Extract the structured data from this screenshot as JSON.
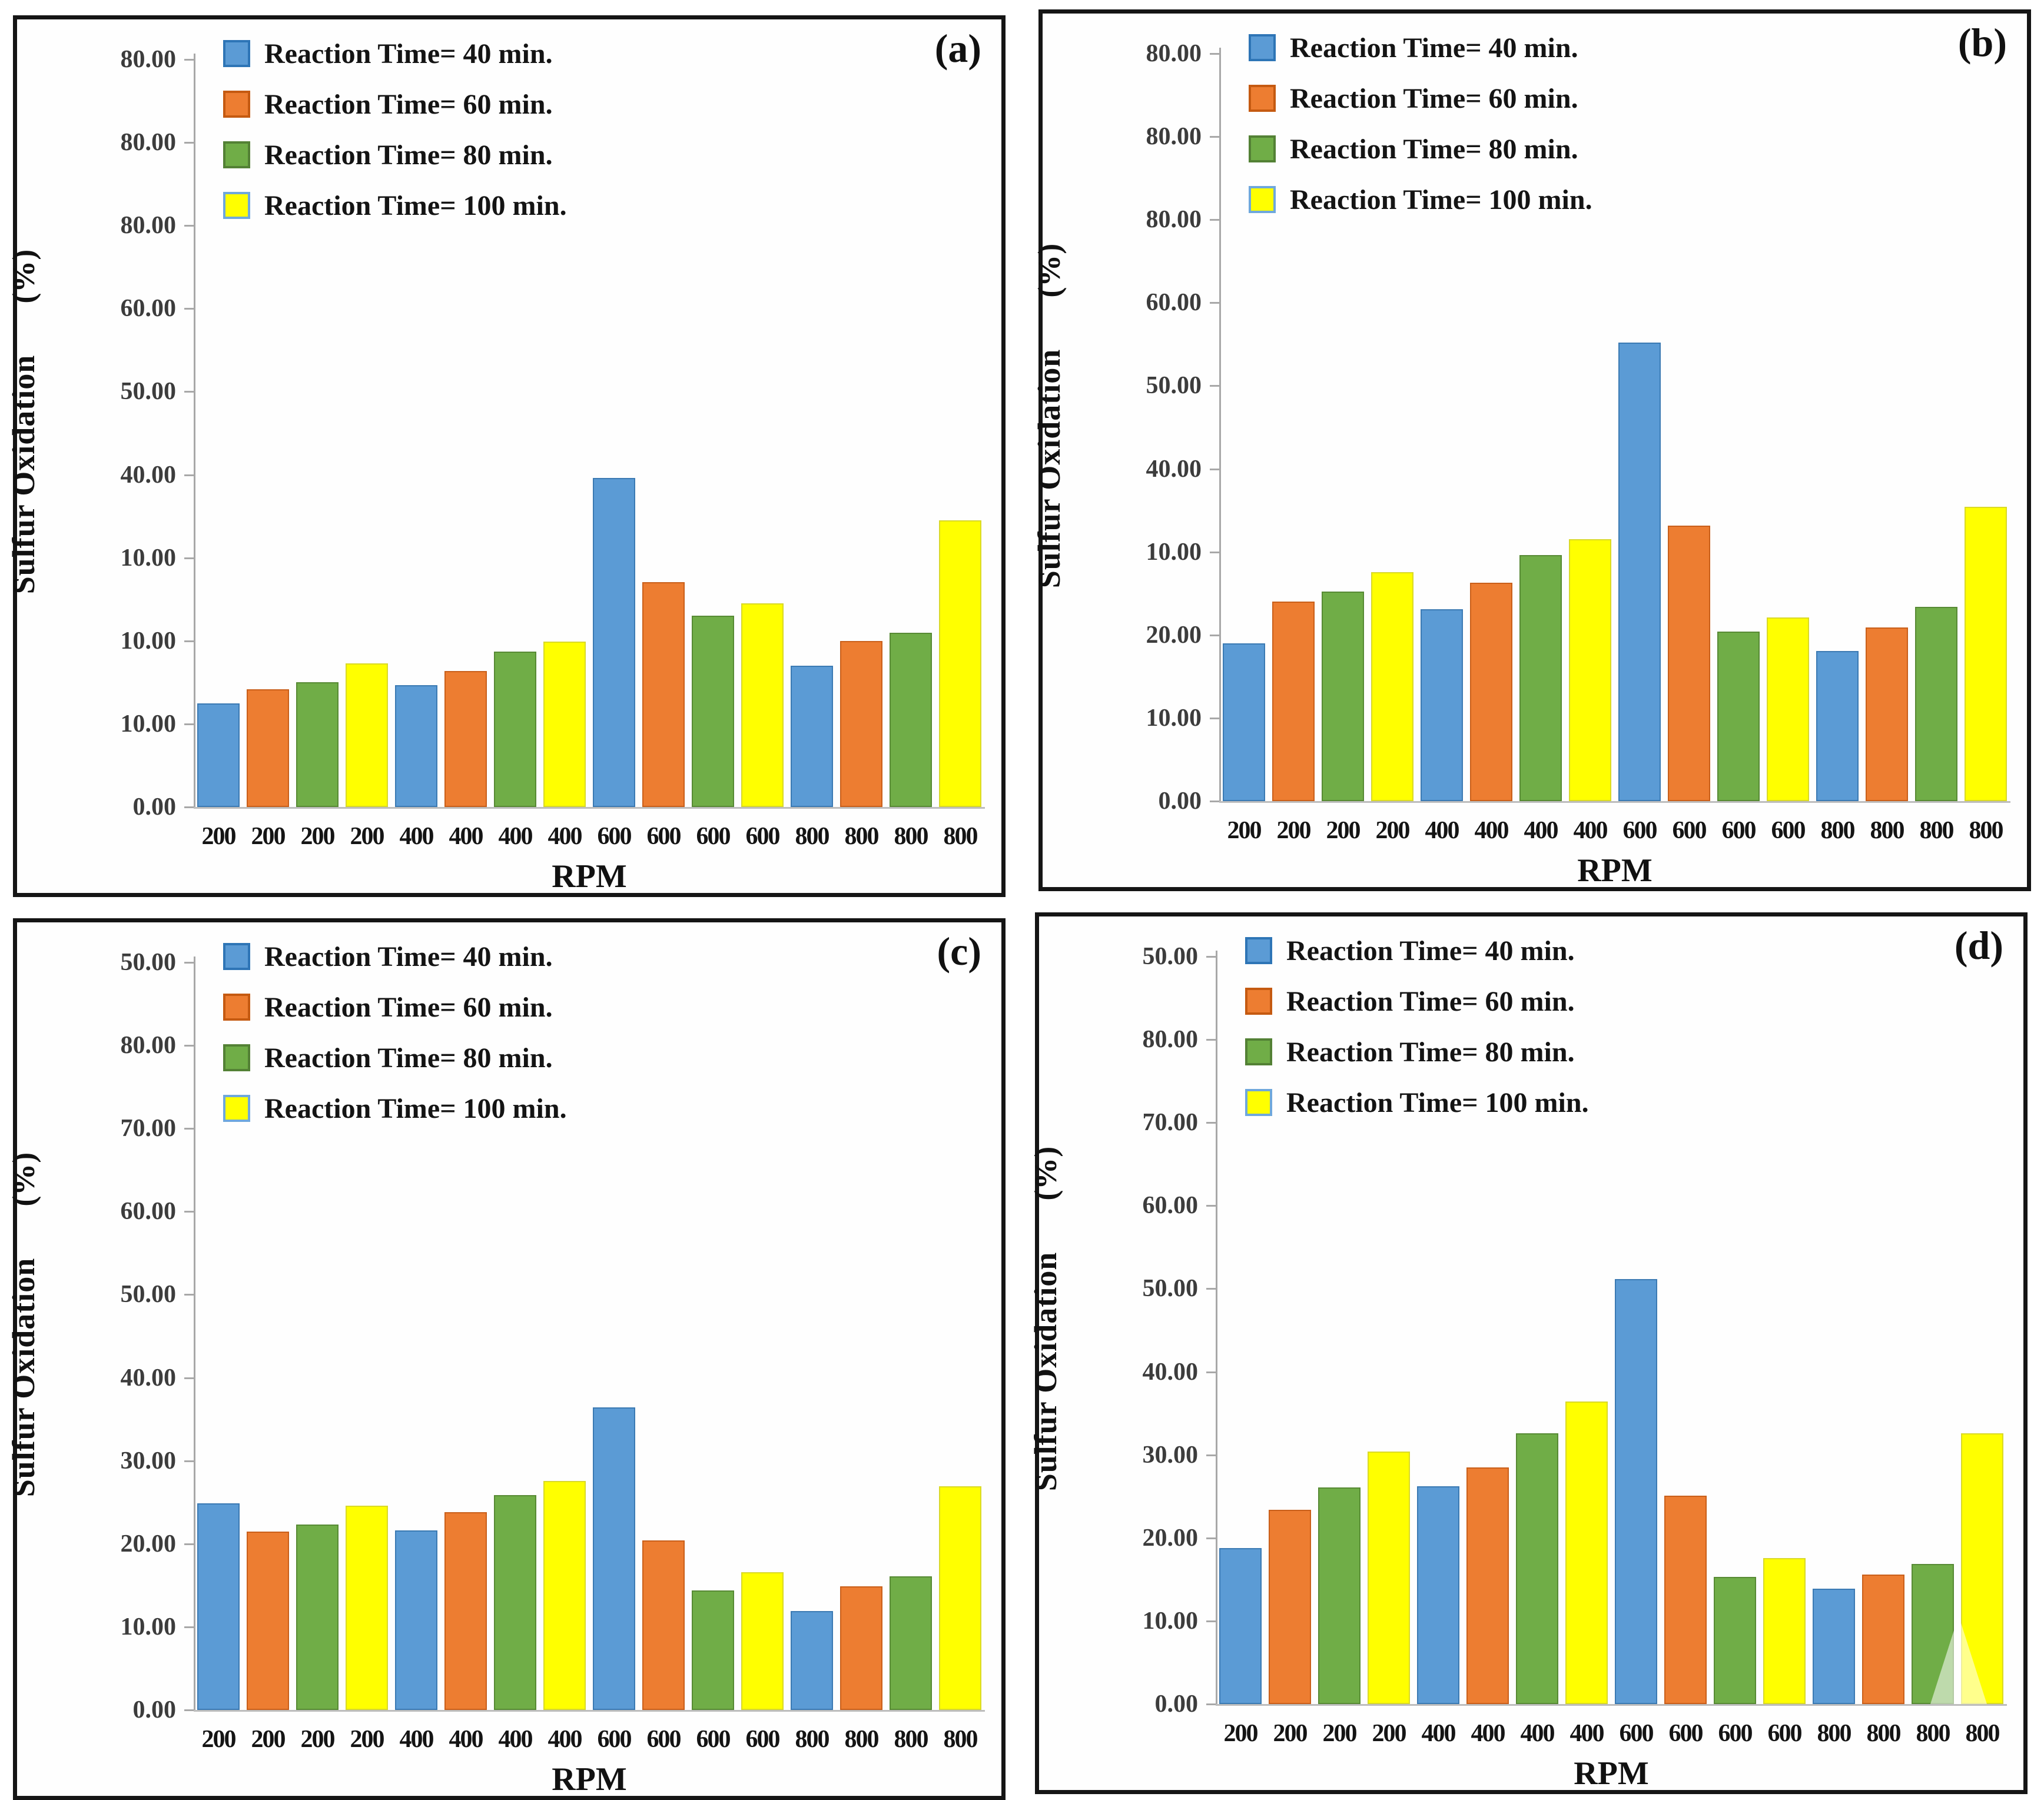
{
  "figure": {
    "background": "#ffffff",
    "panel_border_color": "#151515",
    "axis_color": "#a8a8a8",
    "series_colors": {
      "blue": "#5B9BD5",
      "orange": "#ED7D31",
      "green": "#70AD47",
      "yellow": "#FFFF00"
    }
  },
  "chart_data": [
    {
      "type": "bar",
      "panel_id": "a",
      "panel_label": "(a)",
      "ylabel": "Sulfur Oxidation",
      "ylabel_unit": "(%)",
      "xlabel": "RPM",
      "ylim": [
        0,
        90
      ],
      "grid": false,
      "legend_position": "top-left-inside",
      "y_tick_labels_top_to_bottom": [
        "80.00",
        "80.00",
        "80.00",
        "60.00",
        "50.00",
        "40.00",
        "10.00",
        "10.00",
        "10.00",
        "0.00"
      ],
      "categories": [
        "200",
        "400",
        "600",
        "800"
      ],
      "x_tick_labels": [
        "200",
        "200",
        "200",
        "200",
        "400",
        "400",
        "400",
        "400",
        "600",
        "600",
        "600",
        "600",
        "800",
        "800",
        "800",
        "800"
      ],
      "legend": [
        {
          "label": "Reaction Time= 40 min.",
          "color": "#5B9BD5",
          "border": "#2E75B6"
        },
        {
          "label": "Reaction Time= 60 min.",
          "color": "#ED7D31",
          "border": "#C55A11"
        },
        {
          "label": "Reaction Time= 80 min.",
          "color": "#70AD47",
          "border": "#538135"
        },
        {
          "label": "Reaction Time= 100 min.",
          "color": "#FFFF00",
          "border": "#6FA8DC"
        }
      ],
      "series": [
        {
          "name": "Reaction Time= 40 min.",
          "color": "#5B9BD5",
          "border": "#3b7ab3",
          "values": [
            12.5,
            14.7,
            39.6,
            17.0
          ]
        },
        {
          "name": "Reaction Time= 60 min.",
          "color": "#ED7D31",
          "border": "#c95f1a",
          "values": [
            14.2,
            16.4,
            27.1,
            20.0
          ]
        },
        {
          "name": "Reaction Time= 80 min.",
          "color": "#70AD47",
          "border": "#578a34",
          "values": [
            15.0,
            18.7,
            23.0,
            21.0
          ]
        },
        {
          "name": "Reaction Time= 100 min.",
          "color": "#FFFF00",
          "border": "#d9d927",
          "values": [
            17.3,
            19.9,
            24.5,
            34.5
          ]
        }
      ]
    },
    {
      "type": "bar",
      "panel_id": "b",
      "panel_label": "(b)",
      "ylabel": "Sulfur Oxidation",
      "ylabel_unit": "(%)",
      "xlabel": "RPM",
      "ylim": [
        0,
        90
      ],
      "grid": false,
      "legend_position": "top-left-inside",
      "y_tick_labels_top_to_bottom": [
        "80.00",
        "80.00",
        "80.00",
        "60.00",
        "50.00",
        "40.00",
        "10.00",
        "20.00",
        "10.00",
        "0.00"
      ],
      "categories": [
        "200",
        "400",
        "600",
        "800"
      ],
      "x_tick_labels": [
        "200",
        "200",
        "200",
        "200",
        "400",
        "400",
        "400",
        "400",
        "600",
        "600",
        "600",
        "600",
        "800",
        "800",
        "800",
        "800"
      ],
      "legend": [
        {
          "label": "Reaction Time= 40 min.",
          "color": "#5B9BD5",
          "border": "#2E75B6"
        },
        {
          "label": "Reaction Time= 60 min.",
          "color": "#ED7D31",
          "border": "#C55A11"
        },
        {
          "label": "Reaction Time= 80 min.",
          "color": "#70AD47",
          "border": "#538135"
        },
        {
          "label": "Reaction Time= 100 min.",
          "color": "#FFFF00",
          "border": "#6FA8DC"
        }
      ],
      "series": [
        {
          "name": "Reaction Time= 40 min.",
          "color": "#5B9BD5",
          "border": "#3b7ab3",
          "values": [
            19.0,
            23.1,
            55.2,
            18.1
          ]
        },
        {
          "name": "Reaction Time= 60 min.",
          "color": "#ED7D31",
          "border": "#c95f1a",
          "values": [
            24.0,
            26.3,
            33.2,
            20.9
          ]
        },
        {
          "name": "Reaction Time= 80 min.",
          "color": "#70AD47",
          "border": "#578a34",
          "values": [
            25.2,
            29.6,
            20.4,
            23.4
          ]
        },
        {
          "name": "Reaction Time= 100 min.",
          "color": "#FFFF00",
          "border": "#d9d927",
          "values": [
            27.6,
            31.5,
            22.1,
            35.4
          ]
        }
      ]
    },
    {
      "type": "bar",
      "panel_id": "c",
      "panel_label": "(c)",
      "ylabel": "Sulfur Oxidation",
      "ylabel_unit": "(%)",
      "xlabel": "RPM",
      "ylim": [
        0,
        90
      ],
      "grid": false,
      "legend_position": "top-left-inside",
      "y_tick_labels_top_to_bottom": [
        "50.00",
        "80.00",
        "70.00",
        "60.00",
        "50.00",
        "40.00",
        "30.00",
        "20.00",
        "10.00",
        "0.00"
      ],
      "categories": [
        "200",
        "400",
        "600",
        "800"
      ],
      "x_tick_labels": [
        "200",
        "200",
        "200",
        "200",
        "400",
        "400",
        "400",
        "400",
        "600",
        "600",
        "600",
        "600",
        "800",
        "800",
        "800",
        "800"
      ],
      "legend": [
        {
          "label": "Reaction Time= 40 min.",
          "color": "#5B9BD5",
          "border": "#2E75B6"
        },
        {
          "label": "Reaction Time= 60 min.",
          "color": "#ED7D31",
          "border": "#C55A11"
        },
        {
          "label": "Reaction Time= 80 min.",
          "color": "#70AD47",
          "border": "#538135"
        },
        {
          "label": "Reaction Time= 100 min.",
          "color": "#FFFF00",
          "border": "#6FA8DC"
        }
      ],
      "series": [
        {
          "name": "Reaction Time= 40 min.",
          "color": "#5B9BD5",
          "border": "#3b7ab3",
          "values": [
            24.9,
            21.6,
            36.4,
            11.9
          ]
        },
        {
          "name": "Reaction Time= 60 min.",
          "color": "#ED7D31",
          "border": "#c95f1a",
          "values": [
            21.5,
            23.8,
            20.4,
            14.9
          ]
        },
        {
          "name": "Reaction Time= 80 min.",
          "color": "#70AD47",
          "border": "#578a34",
          "values": [
            22.3,
            25.9,
            14.4,
            16.1
          ]
        },
        {
          "name": "Reaction Time= 100 min.",
          "color": "#FFFF00",
          "border": "#d9d927",
          "values": [
            24.6,
            27.6,
            16.6,
            26.9
          ]
        }
      ]
    },
    {
      "type": "bar",
      "panel_id": "d",
      "panel_label": "(d)",
      "ylabel": "Sulfur Oxidation",
      "ylabel_unit": "(%)",
      "xlabel": "RPM",
      "ylim": [
        0,
        90
      ],
      "grid": false,
      "legend_position": "top-left-inside",
      "watermark": "pale-triangle-artifact-bottom-right",
      "y_tick_labels_top_to_bottom": [
        "50.00",
        "80.00",
        "70.00",
        "60.00",
        "50.00",
        "40.00",
        "30.00",
        "20.00",
        "10.00",
        "0.00"
      ],
      "categories": [
        "200",
        "400",
        "600",
        "800"
      ],
      "x_tick_labels": [
        "200",
        "200",
        "200",
        "200",
        "400",
        "400",
        "400",
        "400",
        "600",
        "600",
        "600",
        "600",
        "800",
        "800",
        "800",
        "800"
      ],
      "legend": [
        {
          "label": "Reaction Time= 40 min.",
          "color": "#5B9BD5",
          "border": "#2E75B6"
        },
        {
          "label": "Reaction Time= 60 min.",
          "color": "#ED7D31",
          "border": "#C55A11"
        },
        {
          "label": "Reaction Time= 80 min.",
          "color": "#70AD47",
          "border": "#538135"
        },
        {
          "label": "Reaction Time= 100 min.",
          "color": "#FFFF00",
          "border": "#6FA8DC"
        }
      ],
      "series": [
        {
          "name": "Reaction Time= 40 min.",
          "color": "#5B9BD5",
          "border": "#3b7ab3",
          "values": [
            18.8,
            26.2,
            51.2,
            13.9
          ]
        },
        {
          "name": "Reaction Time= 60 min.",
          "color": "#ED7D31",
          "border": "#c95f1a",
          "values": [
            23.4,
            28.5,
            25.1,
            15.6
          ]
        },
        {
          "name": "Reaction Time= 80 min.",
          "color": "#70AD47",
          "border": "#578a34",
          "values": [
            26.1,
            32.6,
            15.3,
            16.9
          ]
        },
        {
          "name": "Reaction Time= 100 min.",
          "color": "#FFFF00",
          "border": "#d9d927",
          "values": [
            30.4,
            36.4,
            17.6,
            32.6
          ]
        }
      ]
    }
  ]
}
